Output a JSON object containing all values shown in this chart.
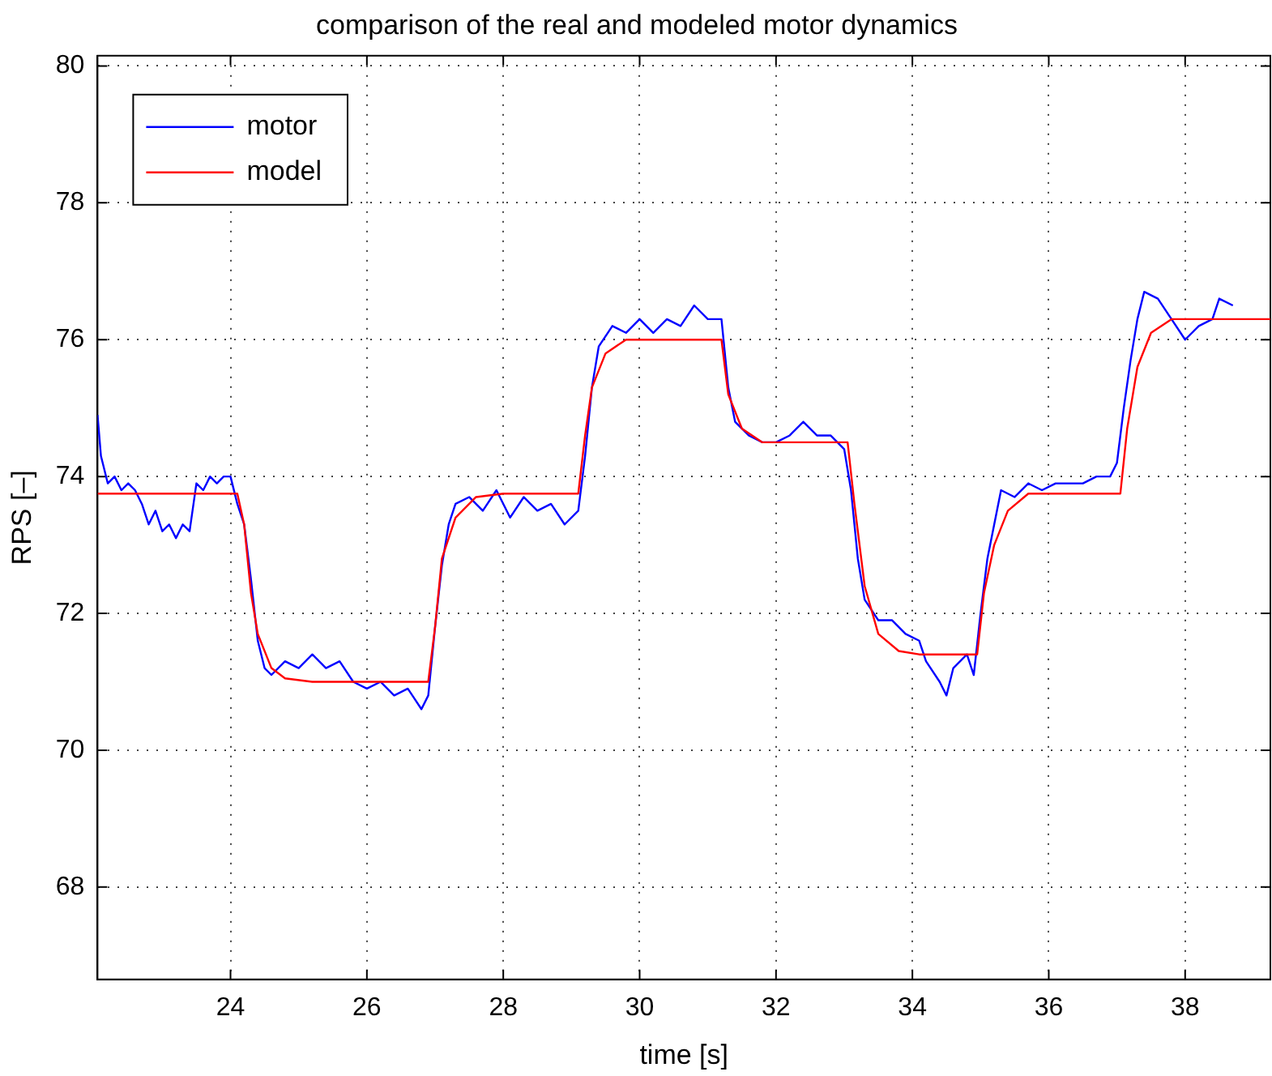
{
  "chart_data": {
    "type": "line",
    "title": "comparison of the real and modeled motor dynamics",
    "xlabel": "time [s]",
    "ylabel": "RPS [–]",
    "xlim": [
      22.05,
      39.25
    ],
    "xticks": [
      24,
      26,
      28,
      30,
      32,
      34,
      36,
      38
    ],
    "ylim": [
      66.65,
      80.15
    ],
    "yticks": [
      68,
      70,
      72,
      74,
      76,
      78,
      80
    ],
    "grid": true,
    "legend": "top left",
    "marker": "none",
    "line_style": "solid",
    "series": [
      {
        "name": "motor",
        "color": "#0000ff",
        "x": [
          22.05,
          22.1,
          22.2,
          22.3,
          22.4,
          22.5,
          22.6,
          22.7,
          22.8,
          22.9,
          23.0,
          23.1,
          23.2,
          23.3,
          23.4,
          23.5,
          23.6,
          23.7,
          23.8,
          23.9,
          24.0,
          24.1,
          24.2,
          24.3,
          24.4,
          24.5,
          24.6,
          24.8,
          25.0,
          25.2,
          25.4,
          25.6,
          25.8,
          26.0,
          26.2,
          26.4,
          26.6,
          26.8,
          26.9,
          27.0,
          27.1,
          27.2,
          27.3,
          27.5,
          27.7,
          27.9,
          28.1,
          28.3,
          28.5,
          28.7,
          28.9,
          29.1,
          29.2,
          29.3,
          29.4,
          29.6,
          29.8,
          30.0,
          30.2,
          30.4,
          30.6,
          30.8,
          31.0,
          31.2,
          31.3,
          31.4,
          31.6,
          31.8,
          32.0,
          32.2,
          32.4,
          32.6,
          32.8,
          33.0,
          33.1,
          33.2,
          33.3,
          33.5,
          33.7,
          33.9,
          34.1,
          34.2,
          34.4,
          34.5,
          34.6,
          34.8,
          34.9,
          35.0,
          35.1,
          35.2,
          35.3,
          35.5,
          35.7,
          35.9,
          36.1,
          36.3,
          36.5,
          36.7,
          36.9,
          37.0,
          37.1,
          37.2,
          37.3,
          37.4,
          37.6,
          37.8,
          38.0,
          38.2,
          38.4,
          38.5,
          38.7
        ],
        "values": [
          74.9,
          74.3,
          73.9,
          74.0,
          73.8,
          73.9,
          73.8,
          73.6,
          73.3,
          73.5,
          73.2,
          73.3,
          73.1,
          73.3,
          73.2,
          73.9,
          73.8,
          74.0,
          73.9,
          74.0,
          74.0,
          73.6,
          73.3,
          72.5,
          71.6,
          71.2,
          71.1,
          71.3,
          71.2,
          71.4,
          71.2,
          71.3,
          71.0,
          70.9,
          71.0,
          70.8,
          70.9,
          70.6,
          70.8,
          71.8,
          72.7,
          73.3,
          73.6,
          73.7,
          73.5,
          73.8,
          73.4,
          73.7,
          73.5,
          73.6,
          73.3,
          73.5,
          74.3,
          75.3,
          75.9,
          76.2,
          76.1,
          76.3,
          76.1,
          76.3,
          76.2,
          76.5,
          76.3,
          76.3,
          75.3,
          74.8,
          74.6,
          74.5,
          74.5,
          74.6,
          74.8,
          74.6,
          74.6,
          74.4,
          73.8,
          72.8,
          72.2,
          71.9,
          71.9,
          71.7,
          71.6,
          71.3,
          71.0,
          70.8,
          71.2,
          71.4,
          71.1,
          72.0,
          72.8,
          73.3,
          73.8,
          73.7,
          73.9,
          73.8,
          73.9,
          73.9,
          73.9,
          74.0,
          74.0,
          74.2,
          75.0,
          75.7,
          76.3,
          76.7,
          76.6,
          76.3,
          76.0,
          76.2,
          76.3,
          76.6,
          76.5
        ]
      },
      {
        "name": "model",
        "color": "#ff0000",
        "x": [
          22.05,
          24.1,
          24.2,
          24.3,
          24.4,
          24.6,
          24.8,
          25.2,
          26.9,
          27.0,
          27.1,
          27.3,
          27.6,
          28.0,
          29.1,
          29.2,
          29.3,
          29.5,
          29.8,
          31.2,
          31.3,
          31.5,
          31.8,
          33.05,
          33.15,
          33.3,
          33.5,
          33.8,
          34.1,
          34.95,
          35.05,
          35.2,
          35.4,
          35.7,
          37.05,
          37.15,
          37.3,
          37.5,
          37.8,
          39.25
        ],
        "values": [
          73.75,
          73.75,
          73.3,
          72.3,
          71.7,
          71.2,
          71.05,
          71.0,
          71.0,
          71.8,
          72.8,
          73.4,
          73.7,
          73.75,
          73.75,
          74.6,
          75.3,
          75.8,
          76.0,
          76.0,
          75.2,
          74.7,
          74.5,
          74.5,
          73.6,
          72.4,
          71.7,
          71.45,
          71.4,
          71.4,
          72.3,
          73.0,
          73.5,
          73.75,
          73.75,
          74.7,
          75.6,
          76.1,
          76.3,
          76.3
        ]
      }
    ]
  }
}
